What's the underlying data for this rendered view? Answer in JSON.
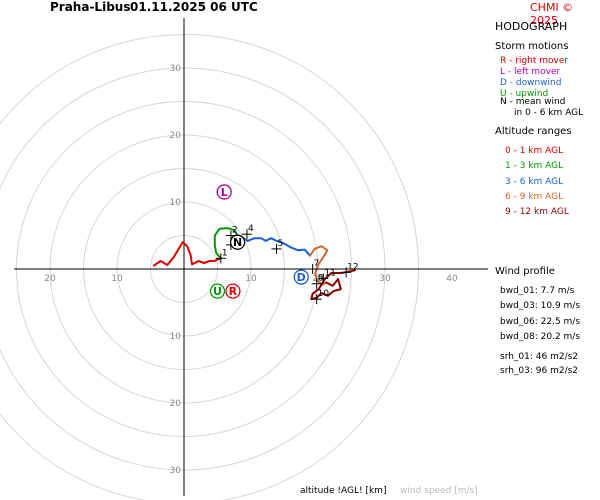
{
  "header": {
    "station": "Praha-Libus",
    "datetime": "01.11.2025 06 UTC",
    "copyright": "CHMI © 2025"
  },
  "panel": {
    "title": "HODOGRAPH",
    "storm_motions_title": "Storm motions",
    "storm_motions": [
      {
        "text": "R - right mover",
        "color": "#dd0000"
      },
      {
        "text": "L - left mover",
        "color": "#aa00aa"
      },
      {
        "text": "D - downwind",
        "color": "#1a5fd0"
      },
      {
        "text": "U - upwind",
        "color": "#009900"
      },
      {
        "text": "N - mean wind",
        "color": "#000000"
      },
      {
        "text": "in 0 - 6 km AGL",
        "color": "#000000"
      }
    ],
    "altitude_title": "Altitude ranges",
    "altitude_ranges": [
      {
        "text": "0 - 1 km AGL",
        "color": "#dd0000"
      },
      {
        "text": "1 - 3 km AGL",
        "color": "#009900"
      },
      {
        "text": "3 - 6 km AGL",
        "color": "#1a5fd0"
      },
      {
        "text": "6 - 9 km AGL",
        "color": "#cc6633"
      },
      {
        "text": "9 - 12 km AGL",
        "color": "#8b0000"
      }
    ],
    "wind_profile_title": "Wind profile",
    "wind_profile": [
      "bwd_01: 7.7 m/s",
      "bwd_03: 10.9 m/s",
      "bwd_06: 22.5 m/s",
      "bwd_08: 20.2 m/s",
      "srh_01: 46 m2/s2",
      "srh_03: 96 m2/s2"
    ]
  },
  "footer": {
    "altitude_label": "altitude !AGL! [km]",
    "wind_speed_label": "wind speed [m/s]"
  },
  "chart_data": {
    "type": "scatter",
    "title": "HODOGRAPH",
    "ring_step": 5,
    "ring_max": 35,
    "x_ticks": [
      -20,
      -10,
      10,
      20,
      30,
      40
    ],
    "x_tick_labels": [
      "20",
      "10",
      "10",
      "20",
      "30",
      "40"
    ],
    "y_ticks": [
      30,
      20,
      10,
      -10,
      -20,
      -30
    ],
    "y_tick_labels": [
      "30",
      "20",
      "10",
      "10",
      "20",
      "30"
    ],
    "xlim": [
      -23,
      45
    ],
    "ylim": [
      -33,
      33
    ],
    "series": [
      {
        "range": "0-1",
        "color": "#dd0000",
        "points": [
          [
            -4.5,
            0.5
          ],
          [
            -3.5,
            1.2
          ],
          [
            -2.5,
            0.6
          ],
          [
            -1.5,
            1.8
          ],
          [
            -0.8,
            3.0
          ],
          [
            -0.2,
            4.0
          ],
          [
            0.5,
            3.4
          ],
          [
            1.0,
            2.0
          ],
          [
            1.2,
            0.7
          ],
          [
            2.2,
            1.2
          ],
          [
            3.0,
            0.9
          ],
          [
            3.8,
            1.2
          ],
          [
            4.5,
            1.2
          ],
          [
            5.5,
            1.6
          ]
        ]
      },
      {
        "range": "1-3",
        "color": "#009900",
        "points": [
          [
            5.5,
            1.6
          ],
          [
            4.8,
            2.4
          ],
          [
            4.6,
            3.5
          ],
          [
            4.6,
            5.0
          ],
          [
            5.3,
            6.0
          ],
          [
            6.5,
            6.1
          ],
          [
            7.5,
            5.8
          ],
          [
            8.0,
            5.0
          ],
          [
            7.6,
            4.2
          ],
          [
            7.0,
            3.6
          ]
        ]
      },
      {
        "range": "3-6",
        "color": "#1a5fd0",
        "points": [
          [
            7.0,
            3.6
          ],
          [
            7.6,
            4.3
          ],
          [
            8.5,
            4.8
          ],
          [
            9.5,
            4.2
          ],
          [
            10.5,
            4.6
          ],
          [
            11.5,
            4.6
          ],
          [
            12.2,
            4.2
          ],
          [
            13.0,
            4.6
          ],
          [
            13.8,
            4.2
          ],
          [
            14.5,
            4.0
          ],
          [
            15.3,
            3.6
          ],
          [
            16.0,
            3.2
          ],
          [
            17.0,
            2.8
          ],
          [
            18.0,
            2.9
          ],
          [
            18.8,
            2.0
          ]
        ]
      },
      {
        "range": "6-9",
        "color": "#cc6633",
        "points": [
          [
            18.8,
            2.0
          ],
          [
            19.5,
            3.0
          ],
          [
            20.5,
            3.4
          ],
          [
            21.4,
            2.8
          ],
          [
            20.8,
            1.8
          ],
          [
            20.0,
            0.6
          ],
          [
            19.6,
            -0.6
          ],
          [
            19.8,
            -1.6
          ],
          [
            20.6,
            -2.4
          ],
          [
            21.2,
            -2.0
          ]
        ]
      },
      {
        "range": "9-12",
        "color": "#8b0000",
        "points": [
          [
            21.2,
            -2.0
          ],
          [
            22.2,
            -2.5
          ],
          [
            23.0,
            -1.5
          ],
          [
            23.4,
            -3.0
          ],
          [
            22.3,
            -3.3
          ],
          [
            21.5,
            -4.0
          ],
          [
            20.5,
            -3.6
          ],
          [
            19.8,
            -4.3
          ],
          [
            19.0,
            -4.5
          ],
          [
            19.2,
            -3.7
          ],
          [
            20.1,
            -3.0
          ],
          [
            21.0,
            -1.5
          ],
          [
            22.0,
            -0.6
          ],
          [
            23.5,
            -0.6
          ],
          [
            24.5,
            -0.4
          ],
          [
            25.5,
            -0.2
          ]
        ]
      }
    ],
    "altitude_marks": [
      {
        "label": "1",
        "x": 5.5,
        "y": 1.6
      },
      {
        "label": "2",
        "x": 7.0,
        "y": 5.0
      },
      {
        "label": "3",
        "x": 7.0,
        "y": 3.6
      },
      {
        "label": "4",
        "x": 9.4,
        "y": 5.2
      },
      {
        "label": "5",
        "x": 13.8,
        "y": 3.0
      },
      {
        "label": "7",
        "x": 19.2,
        "y": 0.0
      },
      {
        "label": "8",
        "x": 19.8,
        "y": -2.2
      },
      {
        "label": "10",
        "x": 19.8,
        "y": -4.5
      },
      {
        "label": "11",
        "x": 20.8,
        "y": -1.4
      },
      {
        "label": "12",
        "x": 24.2,
        "y": -0.5
      }
    ],
    "storm_points": [
      {
        "label": "L",
        "color": "#aa00aa",
        "x": 6.0,
        "y": 11.5
      },
      {
        "label": "N",
        "color": "#000000",
        "x": 8.0,
        "y": 4.0
      },
      {
        "label": "D",
        "color": "#1a5fd0",
        "x": 17.5,
        "y": -1.2
      },
      {
        "label": "U",
        "color": "#009900",
        "x": 5.0,
        "y": -3.3
      },
      {
        "label": "R",
        "color": "#dd0000",
        "x": 7.3,
        "y": -3.3
      }
    ]
  }
}
